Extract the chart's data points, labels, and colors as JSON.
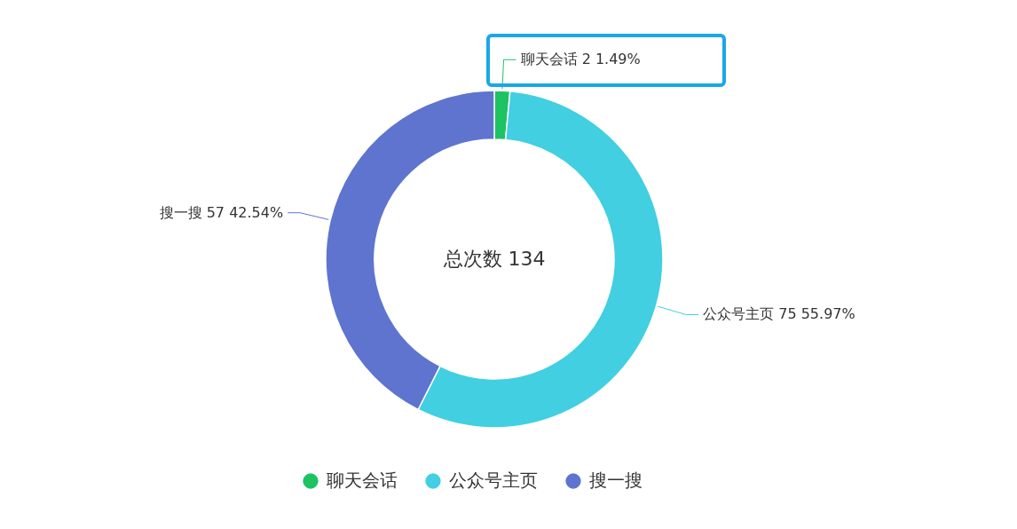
{
  "chart_data": {
    "type": "donut",
    "categories": [
      "聊天会话",
      "公众号主页",
      "搜一搜"
    ],
    "values": [
      2,
      75,
      57
    ],
    "colors": [
      "#1dc363",
      "#41cfe1",
      "#5f74cf"
    ],
    "value_labels": [
      "聊天会话 2 1.49%",
      "公众号主页 75 55.97%",
      "搜一搜 57 42.54%"
    ],
    "annotations": [
      "总次数 134"
    ],
    "legend": "bottom"
  }
}
